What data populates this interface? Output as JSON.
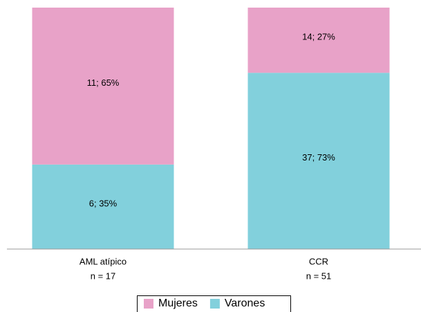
{
  "chart_data": {
    "type": "stacked_bar_100",
    "categories": [
      "AML atípico",
      "CCR"
    ],
    "category_sublabels": [
      "n = 17",
      "n = 51"
    ],
    "series": [
      {
        "name": "Mujeres",
        "color": "#e8a2c8",
        "values": [
          65,
          27
        ],
        "value_labels": [
          "11; 65%",
          "14; 27%"
        ]
      },
      {
        "name": "Varones",
        "color": "#82d0dc",
        "values": [
          35,
          73
        ],
        "value_labels": [
          "6; 35%",
          "37; 73%"
        ]
      }
    ],
    "legend": "bottom"
  }
}
